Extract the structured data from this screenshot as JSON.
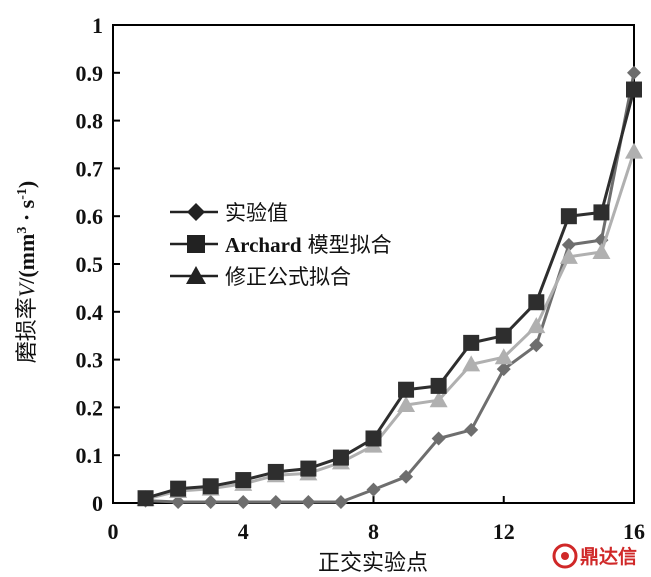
{
  "chart_data": {
    "type": "line",
    "xlabel": "正交实验点",
    "ylabel": "磨损率V/(mm³ · s⁻¹)",
    "ylabel_parts": {
      "cn": "磨损率",
      "var": "V",
      "unit_open": "/(mm",
      "sup3": "3",
      "dot_s": " · s",
      "sup_neg1": "-1",
      "close": ")"
    },
    "xlim": [
      0,
      16
    ],
    "ylim": [
      0,
      1
    ],
    "x_ticks": [
      0,
      4,
      8,
      12,
      16
    ],
    "y_ticks": [
      0,
      0.1,
      0.2,
      0.3,
      0.4,
      0.5,
      0.6,
      0.7,
      0.8,
      0.9,
      1
    ],
    "x_tick_labels": [
      "0",
      "4",
      "8",
      "12",
      "16"
    ],
    "y_tick_labels": [
      "0",
      "0.1",
      "0.2",
      "0.3",
      "0.4",
      "0.5",
      "0.6",
      "0.7",
      "0.8",
      "0.9",
      "1"
    ],
    "x": [
      1,
      2,
      3,
      4,
      5,
      6,
      7,
      8,
      9,
      10,
      11,
      12,
      13,
      14,
      15,
      16
    ],
    "series": [
      {
        "name": "实验值",
        "marker": "diamond",
        "color": "#6e6e6e",
        "values": [
          0.005,
          0.002,
          0.002,
          0.002,
          0.002,
          0.002,
          0.002,
          0.028,
          0.055,
          0.135,
          0.153,
          0.28,
          0.33,
          0.54,
          0.55,
          0.9
        ]
      },
      {
        "name": "Archard 模型拟合",
        "name_en": "Archard",
        "name_cn": "模型拟合",
        "marker": "square",
        "color": "#2e2e2e",
        "values": [
          0.01,
          0.03,
          0.035,
          0.048,
          0.065,
          0.072,
          0.095,
          0.135,
          0.237,
          0.245,
          0.335,
          0.35,
          0.42,
          0.6,
          0.608,
          0.865
        ]
      },
      {
        "name": "修正公式拟合",
        "marker": "triangle",
        "color": "#b0b0b0",
        "values": [
          0.008,
          0.025,
          0.03,
          0.04,
          0.058,
          0.062,
          0.085,
          0.12,
          0.205,
          0.215,
          0.29,
          0.305,
          0.37,
          0.515,
          0.525,
          0.735
        ]
      }
    ],
    "legend": {
      "position": "center-left"
    },
    "grid": false
  },
  "watermark": {
    "text": "鼎达信"
  }
}
